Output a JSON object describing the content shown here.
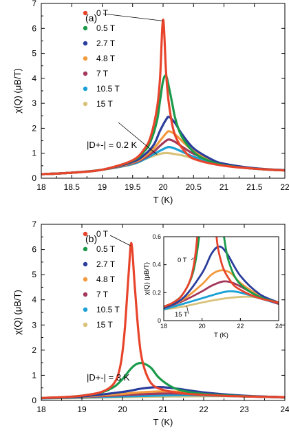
{
  "chart_data": [
    {
      "type": "line",
      "panel_label": "(a)",
      "xlabel": "T (K)",
      "ylabel": "χ(Q)  (μB/T)",
      "xlim": [
        18,
        22
      ],
      "ylim": [
        0,
        7
      ],
      "xticks": [
        "18",
        "18.5",
        "19",
        "19.5",
        "20",
        "20.5",
        "21",
        "21.5",
        "22"
      ],
      "yticks": [
        "0",
        "1",
        "2",
        "3",
        "4",
        "5",
        "6",
        "7"
      ],
      "annotation": "|D+-| = 0.2 K",
      "legend_placement": "upper-left",
      "series": [
        {
          "name": "0 T",
          "color": "#e8442c",
          "x": [
            18,
            18.5,
            19,
            19.5,
            19.7,
            19.8,
            19.9,
            19.95,
            20.0,
            20.05,
            20.1,
            20.2,
            20.4,
            20.6,
            21,
            21.5,
            22
          ],
          "y": [
            0.16,
            0.22,
            0.34,
            0.72,
            1.2,
            1.7,
            2.8,
            4.0,
            6.35,
            4.2,
            2.9,
            1.7,
            0.95,
            0.7,
            0.5,
            0.38,
            0.31
          ]
        },
        {
          "name": "0.5 T",
          "color": "#1a9a4a",
          "x": [
            18,
            18.5,
            19,
            19.5,
            19.7,
            19.8,
            19.9,
            19.95,
            20.0,
            20.05,
            20.1,
            20.15,
            20.2,
            20.3,
            20.5,
            20.7,
            21,
            21.5,
            22
          ],
          "y": [
            0.16,
            0.22,
            0.34,
            0.7,
            1.1,
            1.5,
            2.3,
            3.1,
            3.9,
            4.1,
            3.6,
            3.0,
            2.4,
            1.7,
            1.05,
            0.75,
            0.52,
            0.38,
            0.31
          ]
        },
        {
          "name": "2.7 T",
          "color": "#2a3d9c",
          "x": [
            18,
            18.5,
            19,
            19.5,
            19.7,
            19.85,
            19.95,
            20.05,
            20.1,
            20.2,
            20.3,
            20.5,
            20.8,
            21,
            21.5,
            22
          ],
          "y": [
            0.16,
            0.22,
            0.34,
            0.65,
            0.95,
            1.35,
            1.9,
            2.35,
            2.45,
            2.2,
            1.8,
            1.2,
            0.75,
            0.58,
            0.4,
            0.32
          ]
        },
        {
          "name": "4.8 T",
          "color": "#f39a3c",
          "x": [
            18,
            18.5,
            19,
            19.5,
            19.7,
            19.85,
            19.95,
            20.05,
            20.1,
            20.2,
            20.35,
            20.5,
            20.8,
            21,
            21.5,
            22
          ],
          "y": [
            0.16,
            0.22,
            0.34,
            0.62,
            0.88,
            1.2,
            1.5,
            1.8,
            1.88,
            1.75,
            1.4,
            1.1,
            0.72,
            0.56,
            0.4,
            0.32
          ]
        },
        {
          "name": "7 T",
          "color": "#a3385a",
          "x": [
            18,
            18.5,
            19,
            19.5,
            19.7,
            19.85,
            19.95,
            20.05,
            20.1,
            20.2,
            20.35,
            20.5,
            20.8,
            21,
            21.5,
            22
          ],
          "y": [
            0.16,
            0.22,
            0.34,
            0.6,
            0.82,
            1.07,
            1.3,
            1.5,
            1.55,
            1.45,
            1.2,
            0.98,
            0.68,
            0.54,
            0.39,
            0.32
          ]
        },
        {
          "name": "10.5 T",
          "color": "#1aa0d4",
          "x": [
            18,
            18.5,
            19,
            19.5,
            19.7,
            19.85,
            19.95,
            20.05,
            20.1,
            20.2,
            20.35,
            20.5,
            20.8,
            21,
            21.5,
            22
          ],
          "y": [
            0.16,
            0.22,
            0.34,
            0.57,
            0.77,
            0.97,
            1.1,
            1.22,
            1.25,
            1.18,
            1.02,
            0.86,
            0.63,
            0.52,
            0.38,
            0.31
          ]
        },
        {
          "name": "15 T",
          "color": "#d9c27a",
          "x": [
            18,
            18.5,
            19,
            19.5,
            19.7,
            19.85,
            20.0,
            20.1,
            20.3,
            20.5,
            20.8,
            21,
            21.5,
            22
          ],
          "y": [
            0.16,
            0.22,
            0.34,
            0.56,
            0.76,
            0.9,
            1.0,
            1.0,
            0.92,
            0.8,
            0.62,
            0.52,
            0.38,
            0.31
          ]
        }
      ]
    },
    {
      "type": "line",
      "panel_label": "(b)",
      "xlabel": "T (K)",
      "ylabel": "χ(Q)  (μB/T)",
      "xlim": [
        18,
        24
      ],
      "ylim": [
        0,
        7
      ],
      "xticks": [
        "18",
        "19",
        "20",
        "21",
        "22",
        "23",
        "24"
      ],
      "yticks": [
        "0",
        "1",
        "2",
        "3",
        "4",
        "5",
        "6",
        "7"
      ],
      "annotation": "|D+-| = 3 K",
      "legend_placement": "upper-left",
      "series": [
        {
          "name": "0 T",
          "color": "#e8442c",
          "x": [
            18,
            18.5,
            19,
            19.5,
            19.8,
            19.95,
            20.05,
            20.15,
            20.22,
            20.3,
            20.4,
            20.5,
            20.7,
            21,
            21.5,
            22,
            23,
            24
          ],
          "y": [
            0.1,
            0.13,
            0.19,
            0.35,
            0.7,
            1.4,
            2.7,
            5.0,
            6.25,
            4.6,
            2.6,
            1.5,
            0.7,
            0.42,
            0.28,
            0.22,
            0.16,
            0.13
          ]
        },
        {
          "name": "0.5 T",
          "color": "#1a9a4a",
          "x": [
            18,
            18.5,
            19,
            19.5,
            19.8,
            20.0,
            20.2,
            20.35,
            20.5,
            20.7,
            20.9,
            21.2,
            21.5,
            22,
            23,
            24
          ],
          "y": [
            0.1,
            0.13,
            0.19,
            0.33,
            0.55,
            0.85,
            1.25,
            1.45,
            1.48,
            1.3,
            0.9,
            0.55,
            0.38,
            0.26,
            0.17,
            0.13
          ]
        },
        {
          "name": "2.7 T",
          "color": "#2a3d9c",
          "x": [
            18,
            19,
            20,
            20.5,
            20.9,
            21.3,
            22,
            23,
            24
          ],
          "y": [
            0.09,
            0.16,
            0.34,
            0.48,
            0.53,
            0.48,
            0.32,
            0.19,
            0.13
          ]
        },
        {
          "name": "4.8 T",
          "color": "#f39a3c",
          "x": [
            18,
            19,
            20,
            20.5,
            21.0,
            21.5,
            22,
            23,
            24
          ],
          "y": [
            0.09,
            0.15,
            0.26,
            0.33,
            0.36,
            0.34,
            0.27,
            0.18,
            0.13
          ]
        },
        {
          "name": "7 T",
          "color": "#a3385a",
          "x": [
            18,
            19,
            20,
            20.5,
            21.1,
            21.6,
            22.2,
            23,
            24
          ],
          "y": [
            0.09,
            0.14,
            0.21,
            0.25,
            0.28,
            0.27,
            0.23,
            0.17,
            0.12
          ]
        },
        {
          "name": "10.5 T",
          "color": "#1aa0d4",
          "x": [
            18,
            19,
            20,
            21,
            21.6,
            22.3,
            23,
            24
          ],
          "y": [
            0.08,
            0.12,
            0.16,
            0.2,
            0.21,
            0.19,
            0.16,
            0.12
          ]
        },
        {
          "name": "15 T",
          "color": "#d9c27a",
          "x": [
            18,
            19,
            20,
            21,
            22,
            22.6,
            23.3,
            24
          ],
          "y": [
            0.08,
            0.1,
            0.13,
            0.155,
            0.17,
            0.17,
            0.155,
            0.12
          ]
        }
      ]
    }
  ],
  "inset": {
    "ylabel": "χ(Q)  (μB/T)",
    "xlabel": "T (K)",
    "xlim": [
      18,
      24
    ],
    "ylim": [
      0,
      0.6
    ],
    "xticks": [
      "18",
      "20",
      "22",
      "24"
    ],
    "yticks": [
      "0",
      "0.2",
      "0.4",
      "0.6"
    ],
    "label_top": "0 T",
    "label_bottom": "15 T"
  }
}
